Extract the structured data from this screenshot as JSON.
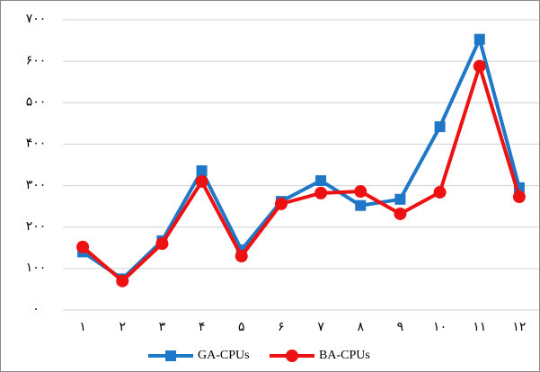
{
  "chart_data": {
    "type": "line",
    "categories": [
      "۱",
      "۲",
      "۳",
      "۴",
      "۵",
      "۶",
      "۷",
      "۸",
      "۹",
      "۱۰",
      "۱۱",
      "۱۲"
    ],
    "series": [
      {
        "name": "GA-CPUs",
        "color": "#1f77c8",
        "marker": "square",
        "values": [
          140,
          75,
          167,
          336,
          145,
          262,
          312,
          252,
          267,
          442,
          653,
          295
        ]
      },
      {
        "name": "BA-CPUs",
        "color": "#ee1111",
        "marker": "circle",
        "values": [
          152,
          70,
          160,
          310,
          130,
          256,
          282,
          286,
          232,
          284,
          588,
          273
        ]
      }
    ],
    "ylim": [
      0,
      700
    ],
    "yticks": [
      {
        "value": 0,
        "label": "۰"
      },
      {
        "value": 100,
        "label": "۱۰۰"
      },
      {
        "value": 200,
        "label": "۲۰۰"
      },
      {
        "value": 300,
        "label": "۳۰۰"
      },
      {
        "value": 400,
        "label": "۴۰۰"
      },
      {
        "value": 500,
        "label": "۵۰۰"
      },
      {
        "value": 600,
        "label": "۶۰۰"
      },
      {
        "value": 700,
        "label": "۷۰۰"
      }
    ],
    "grid": true,
    "legend": "bottom"
  }
}
